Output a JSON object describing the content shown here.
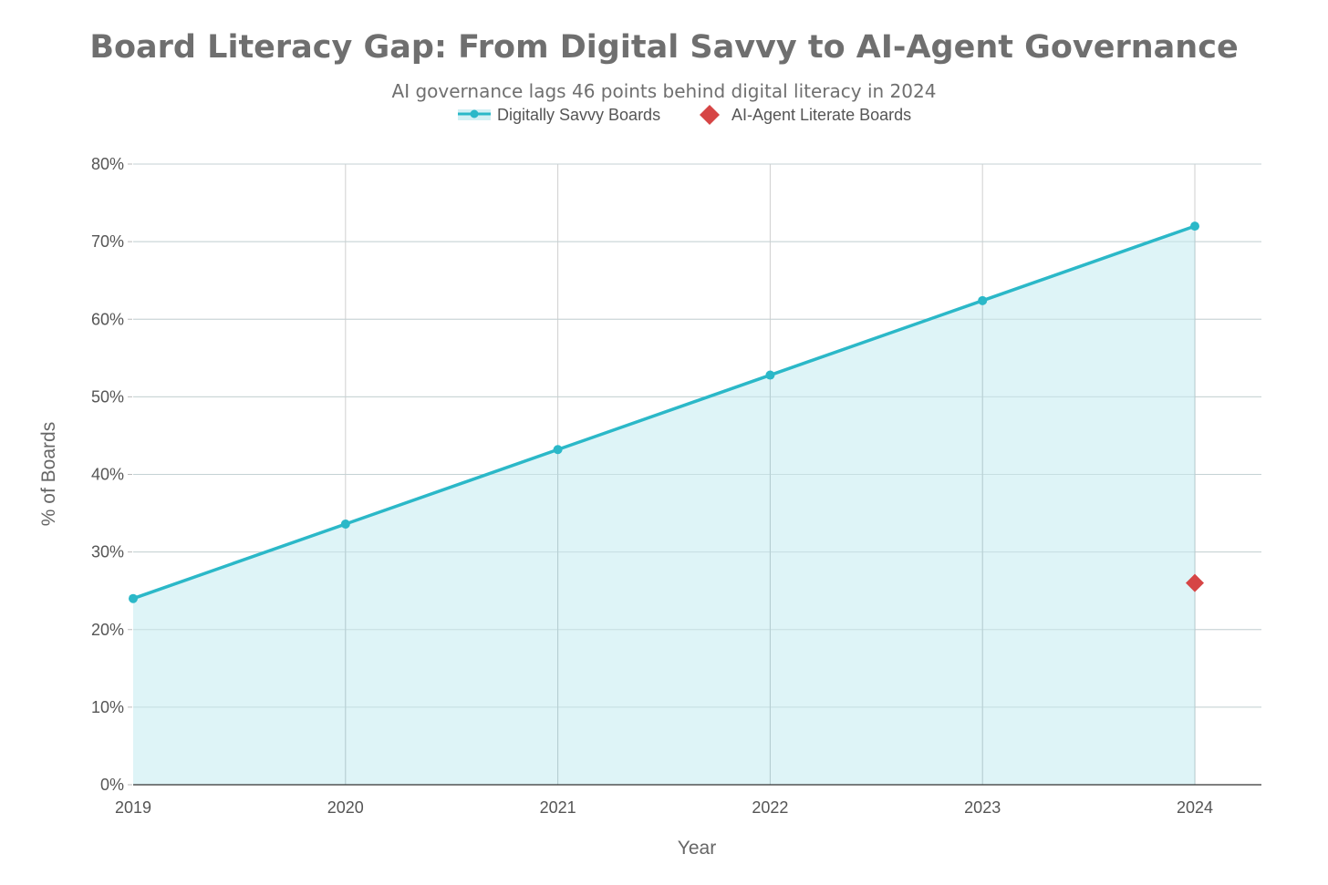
{
  "chart_data": {
    "type": "area",
    "title": "Board Literacy Gap: From Digital Savvy to AI-Agent Governance",
    "subtitle": "AI governance lags 46 points behind digital literacy in 2024",
    "xlabel": "Year",
    "ylabel": "% of Boards",
    "x": [
      2019,
      2020,
      2021,
      2022,
      2023,
      2024
    ],
    "ylim": [
      0,
      80
    ],
    "yticks": [
      "0%",
      "10%",
      "20%",
      "30%",
      "40%",
      "50%",
      "60%",
      "70%",
      "80%"
    ],
    "xticks": [
      "2019",
      "2020",
      "2021",
      "2022",
      "2023",
      "2024"
    ],
    "grid": true,
    "legend_position": "top-center",
    "series": [
      {
        "name": "Digitally Savvy Boards",
        "type": "area-line",
        "x": [
          2019,
          2020,
          2021,
          2022,
          2023,
          2024
        ],
        "values": [
          24,
          33.6,
          43.2,
          52.8,
          62.4,
          72
        ],
        "color": "#2bb8c8",
        "fill": "#d3f0f4"
      },
      {
        "name": "AI-Agent Literate Boards",
        "type": "scatter-diamond",
        "x": [
          2024
        ],
        "values": [
          26
        ],
        "color": "#d64545"
      }
    ]
  }
}
